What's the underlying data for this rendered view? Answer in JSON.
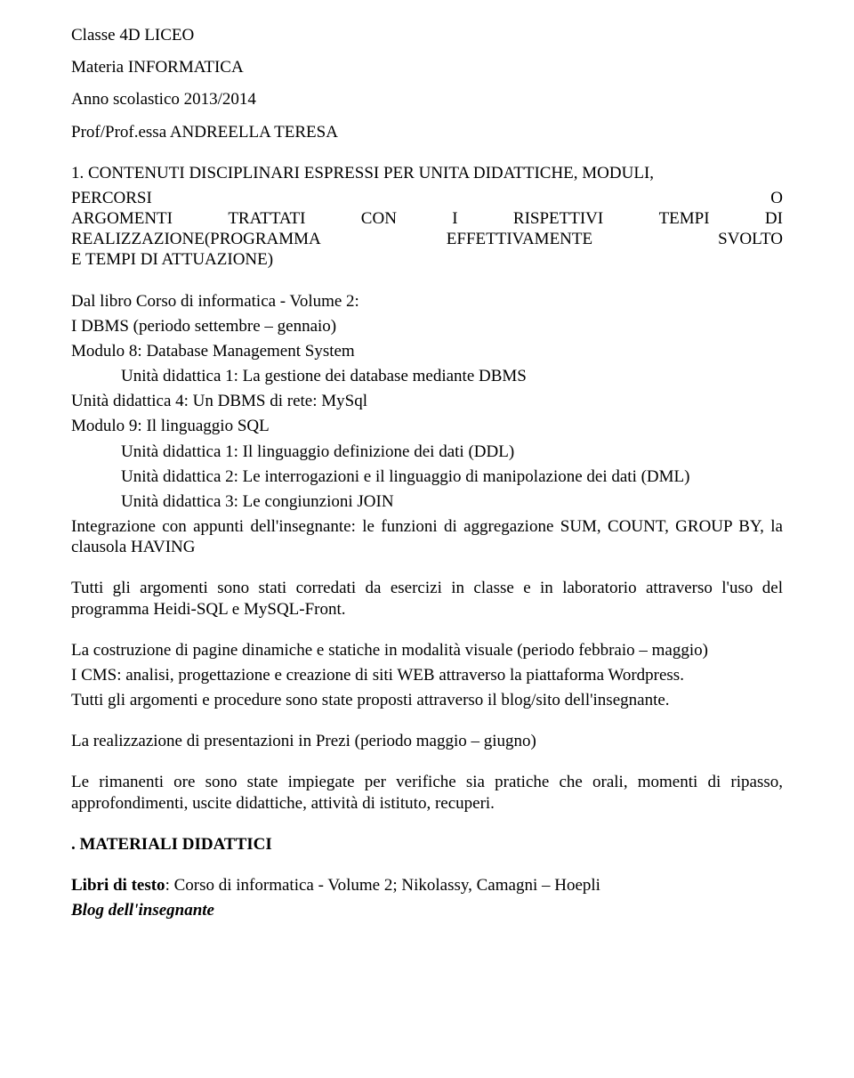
{
  "text_color": "#000000",
  "background_color": "#ffffff",
  "font_family": "Times New Roman",
  "base_font_size_pt": 14,
  "header": {
    "class_line": "Classe 4D LICEO",
    "subject_line": "Materia INFORMATICA",
    "year_line": "Anno scolastico 2013/2014",
    "prof_line": "Prof/Prof.essa ANDREELLA TERESA"
  },
  "section1": {
    "title_rows": [
      [
        "1.  CONTENUTI   DISCIPLINARI   ESPRESSI   PER   UNITA   DIDATTICHE,   MODULI,"
      ],
      [
        "PERCORSI",
        "O"
      ],
      [
        "ARGOMENTI",
        "TRATTATI",
        "CON",
        "I",
        "RISPETTIVI",
        "TEMPI",
        "DI"
      ],
      [
        "REALIZZAZIONE(PROGRAMMA",
        "EFFETTIVAMENTE",
        "SVOLTO"
      ],
      [
        "E TEMPI DI ATTUAZIONE)"
      ]
    ],
    "source_line": "Dal libro Corso di informatica - Volume 2:",
    "lines": [
      "I DBMS (periodo settembre – gennaio)",
      "Modulo 8: Database Management System"
    ],
    "indent_lines_1": [
      "Unità didattica 1: La gestione dei database mediante DBMS"
    ],
    "lines2": [
      "Unità didattica 4: Un DBMS di rete: MySql",
      "Modulo 9: Il linguaggio SQL"
    ],
    "indent_lines_2": [
      "Unità didattica 1: Il linguaggio definizione dei dati (DDL)",
      "Unità didattica 2: Le interrogazioni e il linguaggio di manipolazione dei dati (DML)",
      "Unità didattica 3: Le congiunzioni JOIN"
    ],
    "integration": "Integrazione con appunti dell'insegnante: le funzioni di aggregazione SUM, COUNT, GROUP BY, la clausola HAVING",
    "para_exercises": "Tutti gli argomenti sono stati corredati da esercizi in classe e in laboratorio attraverso l'uso del programma Heidi-SQL e MySQL-Front.",
    "para_cms_1": "La costruzione di pagine dinamiche e statiche in modalità visuale (periodo febbraio – maggio)",
    "para_cms_2": "I CMS: analisi, progettazione e creazione di siti WEB attraverso la piattaforma Wordpress.",
    "para_cms_3": "Tutti gli argomenti e procedure sono state proposti attraverso il blog/sito dell'insegnante.",
    "para_prezi": "La realizzazione di presentazioni in Prezi (periodo maggio – giugno)",
    "para_rest": "Le rimanenti ore sono state impiegate per verifiche sia pratiche che orali, momenti di ripasso, approfondimenti, uscite didattiche, attività di istituto, recuperi."
  },
  "section2": {
    "title": ".  MATERIALI DIDATTICI",
    "book_label": "Libri di testo",
    "book_value": ":  Corso di informatica - Volume 2; Nikolassy, Camagni – Hoepli",
    "blog": "Blog dell'insegnante"
  }
}
